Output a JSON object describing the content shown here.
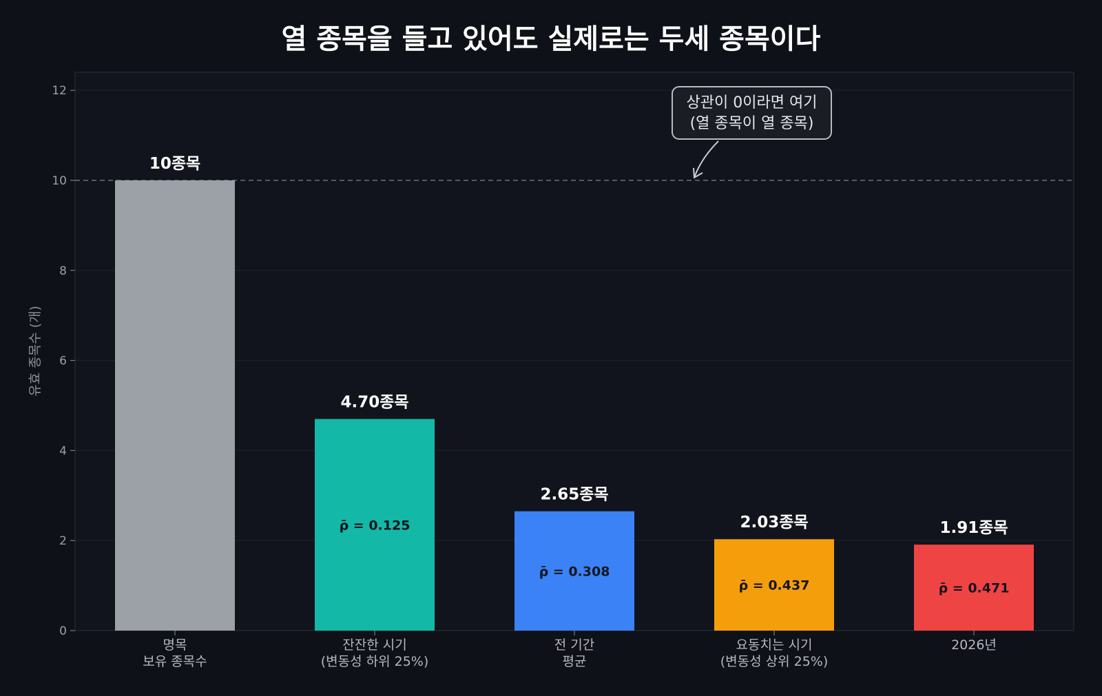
{
  "colors": {
    "background": "#0e1118",
    "plot_background": "#11141c",
    "gray": "#9ca1a8",
    "teal": "#14b8a6",
    "blue": "#3b82f6",
    "orange": "#f59e0b",
    "red": "#ef4444"
  },
  "chart_data": {
    "type": "bar",
    "title": "열 종목을 들고 있어도 실제로는 두세 종목이다",
    "xlabel": "",
    "ylabel": "유효 종목수 (개)",
    "ylim": [
      0,
      12.4
    ],
    "yticks": [
      0,
      2,
      4,
      6,
      8,
      10,
      12
    ],
    "grid": true,
    "categories": [
      [
        "명목",
        "보유 종목수"
      ],
      [
        "잔잔한 시기",
        "(변동성 하위 25%)"
      ],
      [
        "전 기간",
        "평균"
      ],
      [
        "요동치는 시기",
        "(변동성 상위 25%)"
      ],
      [
        "2026년"
      ]
    ],
    "values": [
      10,
      4.7,
      2.65,
      2.03,
      1.91
    ],
    "value_labels": [
      "10종목",
      "4.70종목",
      "2.65종목",
      "2.03종목",
      "1.91종목"
    ],
    "rho_labels": [
      "",
      "ρ̄ = 0.125",
      "ρ̄ = 0.308",
      "ρ̄ = 0.437",
      "ρ̄ = 0.471"
    ],
    "bar_colors": [
      "#9ca1a8",
      "#14b8a6",
      "#3b82f6",
      "#f59e0b",
      "#ef4444"
    ],
    "reference_line": {
      "value": 10,
      "annotation": [
        "상관이 0이라면 여기",
        "(열 종목이 열 종목)"
      ]
    }
  }
}
